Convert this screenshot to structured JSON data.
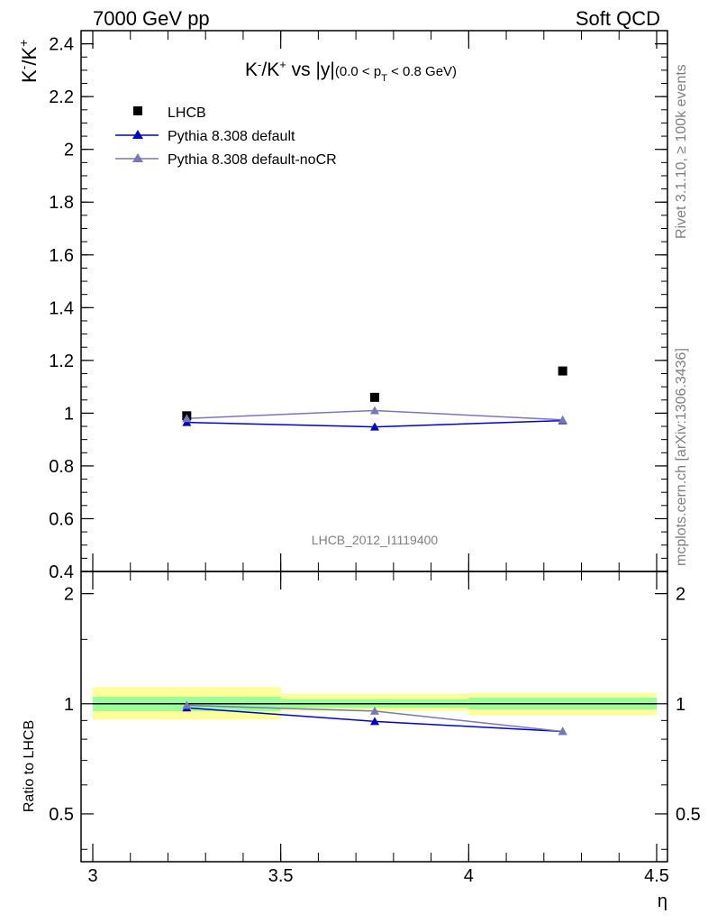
{
  "header": {
    "left": "7000 GeV pp",
    "right": "Soft QCD"
  },
  "side_text": {
    "rivet": "Rivet 3.1.10, ≥ 100k events",
    "mcplots": "mcplots.cern.ch [arXiv:1306.3436]"
  },
  "watermark": "LHCB_2012_I1119400",
  "colors": {
    "lhcb": "#000000",
    "default": "#0000cc",
    "nocr": "#7777bb",
    "band_inner": "#99ff99",
    "band_outer": "#ffff99"
  },
  "chart_data": [
    {
      "type": "scatter",
      "title_parts": {
        "main": "K",
        "sup1": "-",
        "mid": "/K",
        "sup2": "+",
        "vs": " vs |y|",
        "range_a": "(0.0 < p",
        "range_sub": "T",
        "range_b": " < 0.8 GeV)"
      },
      "ylabel_parts": {
        "a": "K",
        "sup1": "-",
        "b": "/K",
        "sup2": "+"
      },
      "xlim": [
        3.0,
        4.5
      ],
      "ylim": [
        0.4,
        2.45
      ],
      "yticks": [
        0.4,
        0.6,
        0.8,
        1.0,
        1.2,
        1.4,
        1.6,
        1.8,
        2.0,
        2.2,
        2.4
      ],
      "ytick_labels": [
        "0.4",
        "0.6",
        "0.8",
        "1",
        "1.2",
        "1.4",
        "1.6",
        "1.8",
        "2",
        "2.2",
        "2.4"
      ],
      "legend": [
        {
          "label": "LHCB",
          "marker": "square",
          "color": "#000000"
        },
        {
          "label": "Pythia 8.308 default",
          "marker": "triangle",
          "color": "#0000cc"
        },
        {
          "label": "Pythia 8.308 default-noCR",
          "marker": "triangle",
          "color": "#7777bb"
        }
      ],
      "series": [
        {
          "name": "LHCB",
          "x": [
            3.25,
            3.75,
            4.25
          ],
          "y": [
            0.99,
            1.06,
            1.16
          ],
          "marker": "square",
          "color": "#000000"
        },
        {
          "name": "Pythia 8.308 default",
          "x": [
            3.25,
            3.75,
            4.25
          ],
          "y": [
            0.965,
            0.948,
            0.972
          ],
          "err": [
            0.008,
            0.01,
            0.012
          ],
          "marker": "triangle",
          "color": "#0000cc"
        },
        {
          "name": "Pythia 8.308 default-noCR",
          "x": [
            3.25,
            3.75,
            4.25
          ],
          "y": [
            0.98,
            1.01,
            0.975
          ],
          "err": [
            0.008,
            0.012,
            0.012
          ],
          "marker": "triangle",
          "color": "#7777bb"
        }
      ]
    },
    {
      "type": "scatter",
      "ylabel": "Ratio to LHCB",
      "xlabel": "η",
      "xlim": [
        3.0,
        4.5
      ],
      "ylim": [
        0.37,
        2.3
      ],
      "log_y": true,
      "xticks": [
        3.0,
        3.5,
        4.0,
        4.5
      ],
      "xtick_labels": [
        "3",
        "3.5",
        "4",
        "4.5"
      ],
      "yticks_labeled": [
        0.5,
        1.0,
        2.0
      ],
      "ytick_labels": [
        "0.5",
        "1",
        "2"
      ],
      "bands": [
        {
          "x0": 3.0,
          "x1": 3.5,
          "outer": [
            0.905,
            1.11
          ],
          "inner": [
            0.955,
            1.045
          ]
        },
        {
          "x0": 3.5,
          "x1": 4.0,
          "outer": [
            0.955,
            1.065
          ],
          "inner": [
            0.975,
            1.03
          ]
        },
        {
          "x0": 4.0,
          "x1": 4.5,
          "outer": [
            0.93,
            1.07
          ],
          "inner": [
            0.965,
            1.04
          ]
        }
      ],
      "series": [
        {
          "name": "Pythia 8.308 default",
          "x": [
            3.25,
            3.75,
            4.25
          ],
          "y": [
            0.975,
            0.895,
            0.84
          ],
          "color": "#0000cc"
        },
        {
          "name": "Pythia 8.308 default-noCR",
          "x": [
            3.25,
            3.75,
            4.25
          ],
          "y": [
            0.99,
            0.955,
            0.84
          ],
          "color": "#7777bb"
        }
      ]
    }
  ]
}
